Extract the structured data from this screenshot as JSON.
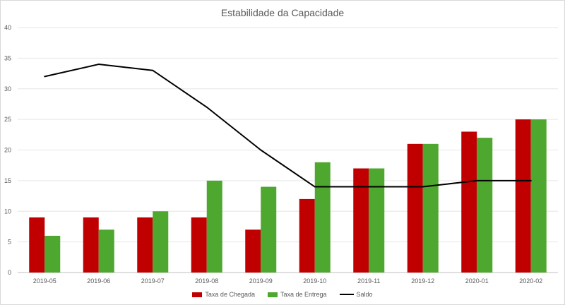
{
  "chart_data": {
    "type": "bar",
    "title": "Estabilidade da Capacidade",
    "xlabel": "",
    "ylabel": "",
    "ylim": [
      0,
      40
    ],
    "yticks": [
      0,
      5,
      10,
      15,
      20,
      25,
      30,
      35,
      40
    ],
    "grid": true,
    "legend_position": "bottom",
    "categories": [
      "2019-05",
      "2019-06",
      "2019-07",
      "2019-08",
      "2019-09",
      "2019-10",
      "2019-11",
      "2019-12",
      "2020-01",
      "2020-02"
    ],
    "series": [
      {
        "name": "Taxa de Chegada",
        "type": "bar",
        "color": "#c00000",
        "values": [
          9,
          9,
          9,
          9,
          7,
          12,
          17,
          21,
          23,
          25
        ]
      },
      {
        "name": "Taxa de Entrega",
        "type": "bar",
        "color": "#4ea72e",
        "values": [
          6,
          7,
          10,
          15,
          14,
          18,
          17,
          21,
          22,
          25
        ]
      },
      {
        "name": "Saldo",
        "type": "line",
        "color": "#000000",
        "values": [
          32,
          34,
          33,
          27,
          20,
          14,
          14,
          14,
          15,
          15
        ]
      }
    ]
  }
}
